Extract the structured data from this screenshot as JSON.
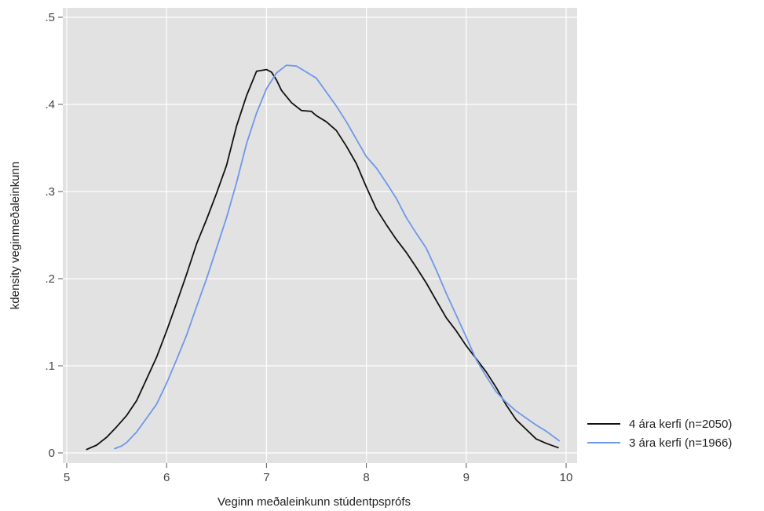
{
  "chart_data": {
    "type": "line",
    "xlabel": "Veginn meðaleinkunn stúdentpsprófs",
    "ylabel": "kdensity veginmeðaleinkunn",
    "xlim": [
      5,
      10
    ],
    "ylim": [
      0,
      0.5
    ],
    "x_ticks": [
      {
        "value": 5,
        "label": "5"
      },
      {
        "value": 6,
        "label": "6"
      },
      {
        "value": 7,
        "label": "7"
      },
      {
        "value": 8,
        "label": "8"
      },
      {
        "value": 9,
        "label": "9"
      },
      {
        "value": 10,
        "label": "10"
      }
    ],
    "y_ticks": [
      {
        "value": 0,
        "label": "0"
      },
      {
        "value": 0.1,
        "label": ".1"
      },
      {
        "value": 0.2,
        "label": ".2"
      },
      {
        "value": 0.3,
        "label": ".3"
      },
      {
        "value": 0.4,
        "label": ".4"
      },
      {
        "value": 0.5,
        "label": ".5"
      }
    ],
    "grid": true,
    "legend": "right",
    "plot_background": "#e2e2e2",
    "grid_color": "#ffffff",
    "series": [
      {
        "name": "4 ára kerfi (n=2050)",
        "color": "#111111",
        "points": [
          [
            5.2,
            0.004
          ],
          [
            5.3,
            0.009
          ],
          [
            5.4,
            0.018
          ],
          [
            5.5,
            0.03
          ],
          [
            5.6,
            0.043
          ],
          [
            5.7,
            0.06
          ],
          [
            5.8,
            0.085
          ],
          [
            5.9,
            0.11
          ],
          [
            6.0,
            0.14
          ],
          [
            6.1,
            0.172
          ],
          [
            6.2,
            0.205
          ],
          [
            6.3,
            0.24
          ],
          [
            6.4,
            0.268
          ],
          [
            6.5,
            0.298
          ],
          [
            6.6,
            0.33
          ],
          [
            6.7,
            0.375
          ],
          [
            6.8,
            0.41
          ],
          [
            6.9,
            0.438
          ],
          [
            7.0,
            0.44
          ],
          [
            7.05,
            0.437
          ],
          [
            7.1,
            0.428
          ],
          [
            7.15,
            0.416
          ],
          [
            7.25,
            0.402
          ],
          [
            7.35,
            0.393
          ],
          [
            7.45,
            0.392
          ],
          [
            7.5,
            0.387
          ],
          [
            7.6,
            0.38
          ],
          [
            7.7,
            0.37
          ],
          [
            7.8,
            0.352
          ],
          [
            7.9,
            0.332
          ],
          [
            8.0,
            0.305
          ],
          [
            8.1,
            0.28
          ],
          [
            8.2,
            0.262
          ],
          [
            8.3,
            0.245
          ],
          [
            8.4,
            0.23
          ],
          [
            8.5,
            0.213
          ],
          [
            8.6,
            0.195
          ],
          [
            8.7,
            0.175
          ],
          [
            8.8,
            0.155
          ],
          [
            8.9,
            0.14
          ],
          [
            9.0,
            0.123
          ],
          [
            9.1,
            0.108
          ],
          [
            9.2,
            0.093
          ],
          [
            9.3,
            0.075
          ],
          [
            9.4,
            0.055
          ],
          [
            9.5,
            0.038
          ],
          [
            9.6,
            0.027
          ],
          [
            9.7,
            0.016
          ],
          [
            9.8,
            0.011
          ],
          [
            9.92,
            0.006
          ]
        ]
      },
      {
        "name": "3 ára kerfi (n=1966)",
        "color": "#6f97e8",
        "points": [
          [
            5.48,
            0.005
          ],
          [
            5.55,
            0.008
          ],
          [
            5.6,
            0.012
          ],
          [
            5.7,
            0.024
          ],
          [
            5.8,
            0.04
          ],
          [
            5.9,
            0.056
          ],
          [
            6.0,
            0.08
          ],
          [
            6.1,
            0.107
          ],
          [
            6.2,
            0.135
          ],
          [
            6.3,
            0.168
          ],
          [
            6.4,
            0.2
          ],
          [
            6.5,
            0.235
          ],
          [
            6.6,
            0.27
          ],
          [
            6.7,
            0.31
          ],
          [
            6.8,
            0.355
          ],
          [
            6.9,
            0.39
          ],
          [
            7.0,
            0.418
          ],
          [
            7.1,
            0.436
          ],
          [
            7.2,
            0.445
          ],
          [
            7.3,
            0.444
          ],
          [
            7.4,
            0.437
          ],
          [
            7.5,
            0.43
          ],
          [
            7.6,
            0.414
          ],
          [
            7.7,
            0.398
          ],
          [
            7.8,
            0.38
          ],
          [
            7.9,
            0.36
          ],
          [
            8.0,
            0.34
          ],
          [
            8.1,
            0.327
          ],
          [
            8.2,
            0.31
          ],
          [
            8.3,
            0.292
          ],
          [
            8.4,
            0.27
          ],
          [
            8.5,
            0.252
          ],
          [
            8.6,
            0.235
          ],
          [
            8.7,
            0.21
          ],
          [
            8.8,
            0.183
          ],
          [
            8.9,
            0.158
          ],
          [
            9.0,
            0.133
          ],
          [
            9.1,
            0.107
          ],
          [
            9.2,
            0.088
          ],
          [
            9.3,
            0.07
          ],
          [
            9.4,
            0.058
          ],
          [
            9.5,
            0.048
          ],
          [
            9.6,
            0.04
          ],
          [
            9.7,
            0.032
          ],
          [
            9.8,
            0.025
          ],
          [
            9.93,
            0.014
          ]
        ]
      }
    ]
  }
}
